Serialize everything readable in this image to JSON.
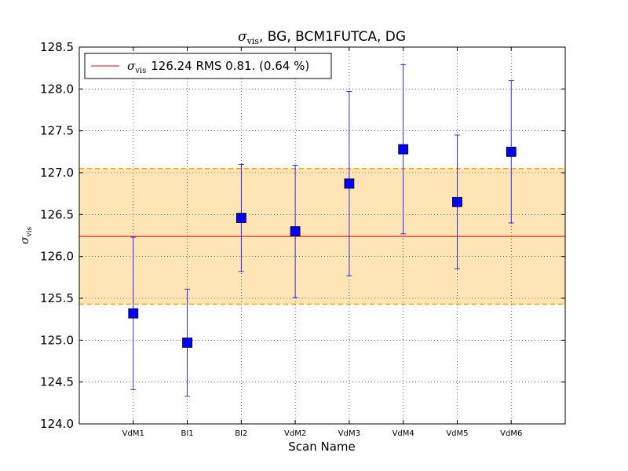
{
  "chart_data": {
    "type": "scatter",
    "title": {
      "symbol": "σ",
      "subscript": "vis",
      "rest": ", BG, BCM1FUTCA, DG"
    },
    "xlabel": "Scan Name",
    "ylabel": {
      "symbol": "σ",
      "subscript": "vis"
    },
    "categories": [
      "VdM1",
      "BI1",
      "BI2",
      "VdM2",
      "VdM3",
      "VdM4",
      "VdM5",
      "VdM6"
    ],
    "values": [
      125.32,
      124.97,
      126.46,
      126.3,
      126.87,
      127.28,
      126.65,
      127.25
    ],
    "errors": [
      0.91,
      0.64,
      0.64,
      0.79,
      1.1,
      1.01,
      0.8,
      0.85
    ],
    "ylim": [
      124.0,
      128.5
    ],
    "yticks": [
      "124.0",
      "124.5",
      "125.0",
      "125.5",
      "126.0",
      "126.5",
      "127.0",
      "127.5",
      "128.0",
      "128.5"
    ],
    "mean": 126.24,
    "rms": 0.81,
    "legend": {
      "symbol": "σ",
      "subscript": "vis",
      "text": "126.24 RMS 0.81. (0.64 %)",
      "placement": "upper-left"
    },
    "grid": true,
    "colors": {
      "marker": "#0000ff",
      "errorbar": "#0000ff",
      "mean_line": "#ff0000",
      "band_fill": "#ffe4b5",
      "band_edge": "#ffa500"
    }
  }
}
